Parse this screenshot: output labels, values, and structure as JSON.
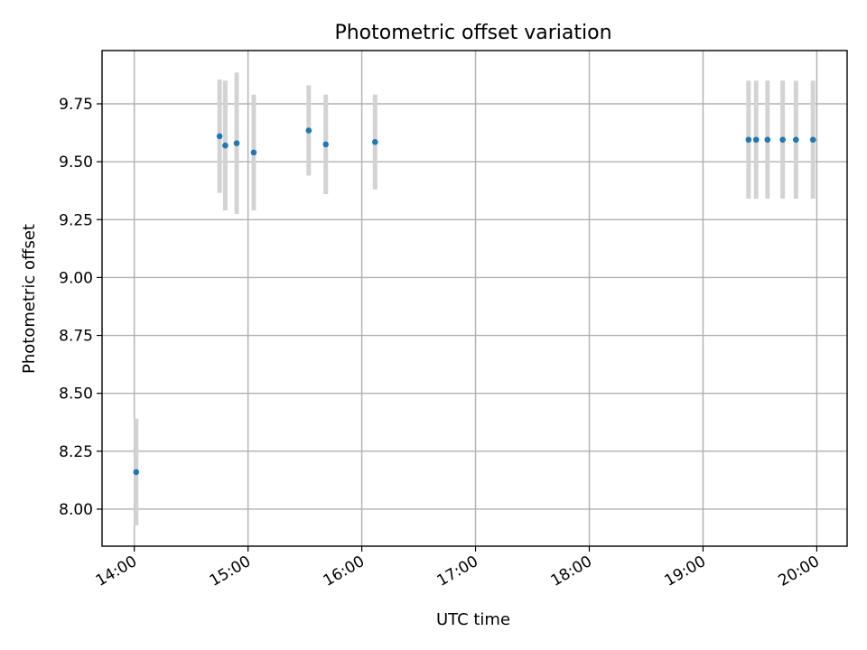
{
  "chart_data": {
    "type": "scatter",
    "title": "Photometric offset variation",
    "xlabel": "UTC time",
    "ylabel": "Photometric offset",
    "x_ticks": [
      "14:00",
      "15:00",
      "16:00",
      "17:00",
      "18:00",
      "19:00",
      "20:00"
    ],
    "y_ticks": [
      "8.00",
      "8.25",
      "8.50",
      "8.75",
      "9.00",
      "9.25",
      "9.50",
      "9.75"
    ],
    "xlim": [
      "13:43",
      "20:16"
    ],
    "ylim": [
      7.84,
      9.98
    ],
    "grid": true,
    "errorbar_color": "#d3d3d3",
    "marker_color": "#1f77b4",
    "series": [
      {
        "points": [
          {
            "x": "14:01",
            "y": 8.16,
            "err": 0.23
          },
          {
            "x": "14:45",
            "y": 9.61,
            "err": 0.245
          },
          {
            "x": "14:48",
            "y": 9.57,
            "err": 0.28
          },
          {
            "x": "14:54",
            "y": 9.58,
            "err": 0.305
          },
          {
            "x": "15:03",
            "y": 9.54,
            "err": 0.25
          },
          {
            "x": "15:32",
            "y": 9.635,
            "err": 0.195
          },
          {
            "x": "15:41",
            "y": 9.575,
            "err": 0.215
          },
          {
            "x": "16:07",
            "y": 9.585,
            "err": 0.205
          },
          {
            "x": "19:24",
            "y": 9.595,
            "err": 0.255
          },
          {
            "x": "19:28",
            "y": 9.595,
            "err": 0.255
          },
          {
            "x": "19:34",
            "y": 9.595,
            "err": 0.255
          },
          {
            "x": "19:42",
            "y": 9.595,
            "err": 0.255
          },
          {
            "x": "19:49",
            "y": 9.595,
            "err": 0.255
          },
          {
            "x": "19:58",
            "y": 9.595,
            "err": 0.255
          }
        ]
      }
    ]
  }
}
